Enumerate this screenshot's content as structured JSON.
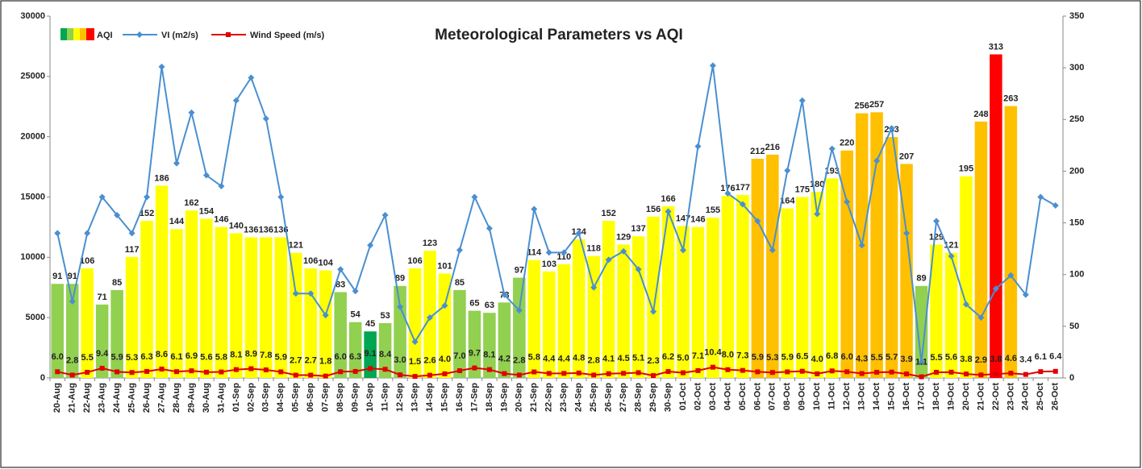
{
  "chart_data": {
    "type": "combo",
    "title": "Meteorological Parameters vs AQI",
    "categories": [
      "20-Aug",
      "21-Aug",
      "22-Aug",
      "23-Aug",
      "24-Aug",
      "25-Aug",
      "26-Aug",
      "27-Aug",
      "28-Aug",
      "29-Aug",
      "30-Aug",
      "31-Aug",
      "01-Sep",
      "02-Sep",
      "03-Sep",
      "04-Sep",
      "05-Sep",
      "06-Sep",
      "07-Sep",
      "08-Sep",
      "09-Sep",
      "10-Sep",
      "11-Sep",
      "12-Sep",
      "13-Sep",
      "14-Sep",
      "15-Sep",
      "16-Sep",
      "17-Sep",
      "18-Sep",
      "19-Sep",
      "20-Sep",
      "21-Sep",
      "22-Sep",
      "23-Sep",
      "24-Sep",
      "25-Sep",
      "26-Sep",
      "27-Sep",
      "28-Sep",
      "29-Sep",
      "30-Sep",
      "01-Oct",
      "02-Oct",
      "03-Oct",
      "04-Oct",
      "05-Oct",
      "06-Oct",
      "07-Oct",
      "08-Oct",
      "09-Oct",
      "10-Oct",
      "11-Oct",
      "12-Oct",
      "13-Oct",
      "14-Oct",
      "15-Oct",
      "16-Oct",
      "17-Oct",
      "18-Oct",
      "19-Oct",
      "20-Oct",
      "21-Oct",
      "22-Oct",
      "23-Oct",
      "24-Oct",
      "25-Oct",
      "26-Oct"
    ],
    "series": [
      {
        "name": "AQI",
        "type": "bar",
        "axis": "y2",
        "values": [
          91,
          91,
          106,
          71,
          85,
          117,
          152,
          186,
          144,
          162,
          154,
          146,
          140,
          136,
          136,
          136,
          121,
          106,
          104,
          83,
          54,
          45,
          53,
          89,
          106,
          123,
          101,
          85,
          65,
          63,
          73,
          97,
          114,
          103,
          110,
          134,
          118,
          152,
          129,
          137,
          156,
          166,
          147,
          146,
          155,
          176,
          177,
          212,
          216,
          164,
          175,
          180,
          193,
          220,
          256,
          257,
          233,
          207,
          89,
          129,
          121,
          195,
          248,
          313,
          263,
          null,
          null,
          null
        ],
        "colors": [
          "#92d050",
          "#92d050",
          "#ffff00",
          "#92d050",
          "#92d050",
          "#ffff00",
          "#ffff00",
          "#ffff00",
          "#ffff00",
          "#ffff00",
          "#ffff00",
          "#ffff00",
          "#ffff00",
          "#ffff00",
          "#ffff00",
          "#ffff00",
          "#ffff00",
          "#ffff00",
          "#ffff00",
          "#92d050",
          "#92d050",
          "#00a651",
          "#92d050",
          "#92d050",
          "#ffff00",
          "#ffff00",
          "#ffff00",
          "#92d050",
          "#92d050",
          "#92d050",
          "#92d050",
          "#92d050",
          "#ffff00",
          "#ffff00",
          "#ffff00",
          "#ffff00",
          "#ffff00",
          "#ffff00",
          "#ffff00",
          "#ffff00",
          "#ffff00",
          "#ffff00",
          "#ffff00",
          "#ffff00",
          "#ffff00",
          "#ffff00",
          "#ffff00",
          "#ffc000",
          "#ffc000",
          "#ffff00",
          "#ffff00",
          "#ffff00",
          "#ffff00",
          "#ffc000",
          "#ffc000",
          "#ffc000",
          "#ffc000",
          "#ffc000",
          "#92d050",
          "#ffff00",
          "#ffff00",
          "#ffff00",
          "#ffc000",
          "#ff0000",
          "#ffc000",
          null,
          null,
          null
        ]
      },
      {
        "name": "VI (m2/s)",
        "type": "line",
        "axis": "y",
        "color": "#4a8fd0",
        "marker": "diamond",
        "values": [
          12000,
          6350,
          12000,
          15000,
          13500,
          12000,
          15000,
          25800,
          17800,
          22000,
          16800,
          15900,
          23000,
          24900,
          21500,
          15000,
          7000,
          7000,
          5200,
          9000,
          7200,
          11000,
          13500,
          5900,
          3000,
          5000,
          6000,
          10600,
          15000,
          12400,
          6900,
          5600,
          14000,
          10400,
          10400,
          12000,
          7500,
          9800,
          10500,
          9000,
          5500,
          13800,
          10600,
          19200,
          25900,
          15300,
          14400,
          13000,
          10600,
          17200,
          23000,
          13600,
          19000,
          14600,
          11000,
          18000,
          20700,
          12000,
          1300,
          13000,
          10100,
          6100,
          5000,
          7400,
          8500,
          6900,
          15000,
          14300
        ]
      },
      {
        "name": "Wind Speed (m/s)",
        "type": "line",
        "axis": "y2",
        "color": "#e00000",
        "marker": "square",
        "values": [
          6,
          2.8,
          5.5,
          9.4,
          5.9,
          5.3,
          6.3,
          8.6,
          6.1,
          6.9,
          5.6,
          5.8,
          8.1,
          8.9,
          7.8,
          5.9,
          2.7,
          2.7,
          1.8,
          6,
          6.3,
          9.1,
          8.4,
          3,
          1.5,
          2.6,
          4,
          7,
          9.7,
          8.1,
          4.2,
          2.8,
          5.8,
          4.4,
          4.4,
          4.8,
          2.8,
          4.1,
          4.5,
          5.1,
          2.3,
          6.2,
          5,
          7.1,
          10.4,
          8,
          7.3,
          5.9,
          5.3,
          5.9,
          6.5,
          4,
          6.8,
          6,
          4.3,
          5.5,
          5.7,
          3.9,
          1.1,
          5.5,
          5.6,
          3.8,
          2.9,
          3.8,
          4.6,
          3.4,
          6.1,
          6.4
        ],
        "value_labels": [
          "6.0",
          "2.8",
          "5.5",
          "9.4",
          "5.9",
          "5.3",
          "6.3",
          "8.6",
          "6.1",
          "6.9",
          "5.6",
          "5.8",
          "8.1",
          "8.9",
          "7.8",
          "5.9",
          "2.7",
          "2.7",
          "1.8",
          "6.0",
          "6.3",
          "9.1",
          "8.4",
          "3.0",
          "1.5",
          "2.6",
          "4.0",
          "7.0",
          "9.7",
          "8.1",
          "4.2",
          "2.8",
          "5.8",
          "4.4",
          "4.4",
          "4.8",
          "2.8",
          "4.1",
          "4.5",
          "5.1",
          "2.3",
          "6.2",
          "5.0",
          "7.1",
          "10.4",
          "8.0",
          "7.3",
          "5.9",
          "5.3",
          "5.9",
          "6.5",
          "4.0",
          "6.8",
          "6.0",
          "4.3",
          "5.5",
          "5.7",
          "3.9",
          "1.1",
          "5.5",
          "5.6",
          "3.8",
          "2.9",
          "3.8",
          "4.6",
          "3.4",
          "6.1",
          "6.4"
        ]
      }
    ],
    "ylim": [
      0,
      30000
    ],
    "yticks": [
      0,
      5000,
      10000,
      15000,
      20000,
      25000,
      30000
    ],
    "y2lim": [
      0,
      350
    ],
    "y2ticks": [
      0,
      50,
      100,
      150,
      200,
      250,
      300,
      350
    ]
  }
}
